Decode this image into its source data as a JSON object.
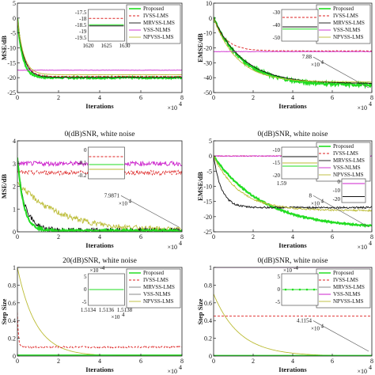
{
  "chart_data": [
    {
      "type": "line",
      "title": "",
      "xlabel": "Iterations",
      "ylabel": "MSE/dB",
      "xlim": [
        0,
        8
      ],
      "ylim": [
        -25,
        5
      ],
      "xticks": [
        "0",
        "2",
        "4",
        "6",
        "8"
      ],
      "yticks": [
        "-25",
        "-20",
        "-15",
        "-10",
        "-5",
        "0",
        "5"
      ],
      "x_multiplier": "×10^4",
      "legend": [
        "Proposed",
        "IVSS-LMS",
        "MRVSS-LMS",
        "VSS-NLMS",
        "NPVSS-LMS"
      ],
      "legend_position": "top-right",
      "series": [
        {
          "name": "Proposed",
          "color": "#22dd22",
          "start": 0,
          "end": -20,
          "decay": 0.25,
          "noise": 0.3,
          "width": 2.2
        },
        {
          "name": "IVSS-LMS",
          "color": "#dd2222",
          "dash": "3,2",
          "start": 0,
          "end": -19.6,
          "decay": 0.3,
          "noise": 0.08,
          "width": 0.9
        },
        {
          "name": "MRVSS-LMS",
          "color": "#111111",
          "start": 0,
          "end": -19.9,
          "decay": 0.3,
          "noise": 0.08,
          "width": 0.9
        },
        {
          "name": "VSS-NLMS",
          "color": "#cc22cc",
          "start": -17.5,
          "end": -17.5,
          "decay": 0.1,
          "noise": 0.05,
          "width": 0.9
        },
        {
          "name": "NPVSS-LMS",
          "color": "#bbbb33",
          "start": 0,
          "end": -19.0,
          "decay": 0.3,
          "noise": 0.05,
          "width": 0.9
        }
      ],
      "inset": {
        "yticks": [
          "-17.5",
          "-18",
          "-18.5",
          "-19",
          "-19.5"
        ],
        "xticks": [
          "1620",
          "1625",
          "1630"
        ],
        "lines": [
          {
            "color": "#dd2222",
            "dash": "3,2",
            "pos": 0.28
          },
          {
            "color": "#22dd22",
            "pos": 0.48
          },
          {
            "color": "#111111",
            "pos": 0.52
          }
        ]
      }
    },
    {
      "type": "line",
      "title": "",
      "xlabel": "Iterations",
      "ylabel": "EMSE/dB",
      "xlim": [
        0,
        8
      ],
      "ylim": [
        -50,
        10
      ],
      "xticks": [
        "0",
        "2",
        "4",
        "6",
        "8"
      ],
      "yticks": [
        "-50",
        "-40",
        "-30",
        "-20",
        "-10",
        "0",
        "10"
      ],
      "x_multiplier": "×10^4",
      "legend": [
        "Proposed",
        "IVSS-LMS",
        "MRVSS-LMS",
        "VSS-NLMS",
        "NPVSS-LMS"
      ],
      "legend_position": "top-right",
      "annotation": "7.88",
      "annotation_multiplier": "×10^4",
      "series": [
        {
          "name": "Proposed",
          "color": "#22dd22",
          "start": 0,
          "end": -45,
          "decay": 1.5,
          "noise": 1.0,
          "width": 2.2
        },
        {
          "name": "IVSS-LMS",
          "color": "#dd2222",
          "dash": "3,2",
          "start": 0,
          "end": -22,
          "decay": 0.6,
          "noise": 0.15,
          "width": 0.9
        },
        {
          "name": "MRVSS-LMS",
          "color": "#111111",
          "start": 0,
          "end": -44,
          "decay": 1.5,
          "noise": 0.2,
          "width": 0.9
        },
        {
          "name": "VSS-NLMS",
          "color": "#cc22cc",
          "start": -22.5,
          "end": -22.5,
          "decay": 0.1,
          "noise": 0.1,
          "width": 0.9
        },
        {
          "name": "NPVSS-LMS",
          "color": "#bbbb33",
          "start": 0,
          "end": -43,
          "decay": 1.2,
          "noise": 0.2,
          "width": 0.9
        }
      ],
      "inset": {
        "yticks": [
          "-30",
          "-40",
          "-50"
        ],
        "xticks": [],
        "lines": [
          {
            "color": "#dd2222",
            "dash": "3,2",
            "pos": 0.25
          },
          {
            "color": "#111111",
            "pos": 0.55
          },
          {
            "color": "#22dd22",
            "pos": 0.62
          }
        ]
      }
    },
    {
      "type": "line",
      "title": "0(dB)SNR, white noise",
      "xlabel": "Iterations",
      "ylabel": "MSE/dB",
      "xlim": [
        0,
        8
      ],
      "ylim": [
        0,
        4
      ],
      "xticks": [
        "0",
        "2",
        "4",
        "6",
        "8"
      ],
      "yticks": [
        "0",
        "1",
        "2",
        "3",
        "4"
      ],
      "x_multiplier": "×10^4",
      "legend": [],
      "annotation": "7.9871",
      "annotation_multiplier": "×10^4",
      "series": [
        {
          "name": "VSS-NLMS",
          "color": "#cc22cc",
          "start": 3.0,
          "end": 3.0,
          "decay": 0.1,
          "noise": 0.1,
          "width": 0.9
        },
        {
          "name": "IVSS-LMS",
          "color": "#dd2222",
          "dash": "3,2",
          "start": 2.6,
          "end": 2.6,
          "decay": 0.1,
          "noise": 0.1,
          "width": 0.9
        },
        {
          "name": "NPVSS-LMS",
          "color": "#bbbb33",
          "start": 2.2,
          "end": 0.05,
          "decay": 2.0,
          "noise": 0.12,
          "width": 0.9
        },
        {
          "name": "MRVSS-LMS",
          "color": "#111111",
          "start": 3.0,
          "end": 0.05,
          "decay": 0.4,
          "noise": 0.12,
          "width": 0.9
        },
        {
          "name": "Proposed",
          "color": "#22dd22",
          "start": 3.3,
          "end": 0.05,
          "decay": 0.3,
          "noise": 0.05,
          "width": 2.0
        }
      ],
      "inset": {
        "yticks": [
          "0",
          "-0.1",
          "-0.2"
        ],
        "xticks": [],
        "lines": [
          {
            "color": "#dd2222",
            "dash": "3,2",
            "pos": 0.3
          },
          {
            "color": "#22dd22",
            "pos": 0.55
          },
          {
            "color": "#bbbb33",
            "pos": 0.7
          }
        ]
      }
    },
    {
      "type": "line",
      "title": "0(dB)SNR, white noise",
      "xlabel": "Iterations",
      "ylabel": "EMSE/dB",
      "xlim": [
        0,
        8
      ],
      "ylim": [
        -25,
        5
      ],
      "xticks": [
        "0",
        "2",
        "4",
        "6",
        "8"
      ],
      "yticks": [
        "-25",
        "-20",
        "-15",
        "-10",
        "-5",
        "0",
        "5"
      ],
      "x_multiplier": "×10^4",
      "legend": [
        "Proposed",
        "IVSS-LMS",
        "MRVSS-LMS",
        "VSS-NLMS",
        "NPVSS-LMS"
      ],
      "legend_position": "top-right",
      "annotation": "8",
      "annotation_multiplier": "×10^4",
      "series": [
        {
          "name": "Proposed",
          "color": "#22dd22",
          "start": 0,
          "end": -24,
          "decay": 2.5,
          "noise": 0.25,
          "width": 2.2
        },
        {
          "name": "IVSS-LMS",
          "color": "#dd2222",
          "dash": "3,2",
          "start": 0,
          "end": 0,
          "decay": 0.1,
          "noise": 0.1,
          "width": 0.9
        },
        {
          "name": "MRVSS-LMS",
          "color": "#111111",
          "start": 0,
          "end": -17,
          "decay": 0.4,
          "noise": 0.3,
          "width": 0.9
        },
        {
          "name": "VSS-NLMS",
          "color": "#cc22cc",
          "start": 0,
          "end": 0,
          "decay": 0.1,
          "noise": 0.1,
          "width": 0.9
        },
        {
          "name": "NPVSS-LMS",
          "color": "#bbbb33",
          "start": 0,
          "end": -18,
          "decay": 1.3,
          "noise": 0.3,
          "width": 0.9
        }
      ],
      "inset": {
        "yticks": [
          "-10",
          "-15",
          "-20"
        ],
        "xticks": [
          "1.59"
        ],
        "lines": [
          {
            "color": "#111111",
            "pos": 0.3
          },
          {
            "color": "#bbbb33",
            "pos": 0.5
          },
          {
            "color": "#22dd22",
            "pos": 0.6
          }
        ]
      },
      "inset2": {
        "yticks": [
          "0",
          "-10",
          "-20"
        ],
        "lines": [
          {
            "color": "#dd2222",
            "dash": "3,2",
            "pos": 0.2
          },
          {
            "color": "#cc22cc",
            "pos": 0.2
          },
          {
            "color": "#111111",
            "pos": 0.75
          }
        ]
      }
    },
    {
      "type": "line",
      "title": "20(dB)SNR, white noise",
      "xlabel": "Iterations",
      "ylabel": "Step Size",
      "xlim": [
        0,
        8
      ],
      "ylim": [
        0,
        1
      ],
      "xticks": [
        "0",
        "2",
        "4",
        "6",
        "8"
      ],
      "yticks": [
        "0",
        "0.2",
        "0.4",
        "0.6",
        "0.8",
        "1"
      ],
      "x_multiplier": "×10^4",
      "legend": [
        "Proposed",
        "IVSS-LMS",
        "MRVSS-LMS",
        "VSS-NLMS",
        "NPVSS-LMS"
      ],
      "legend_position": "top-right",
      "series": [
        {
          "name": "NPVSS-LMS",
          "color": "#bbbb33",
          "start": 1.0,
          "end": 0.0,
          "decay": 0.9,
          "noise": 0,
          "width": 0.9
        },
        {
          "name": "IVSS-LMS",
          "color": "#dd2222",
          "dash": "3,2",
          "start": 0.5,
          "end": 0.1,
          "decay": 0.05,
          "noise": 0.01,
          "width": 0.9
        },
        {
          "name": "Proposed",
          "color": "#22dd22",
          "start": 0.01,
          "end": 0.01,
          "decay": 0.1,
          "noise": 0,
          "width": 1.5
        }
      ],
      "inset": {
        "yticks": [
          "5",
          "0",
          "-5"
        ],
        "xticks": [
          "1.5134",
          "1.5136",
          "1.5138"
        ],
        "multiplier": "×10^-4",
        "xmultiplier": "×10^4",
        "lines": [
          {
            "color": "#22dd22",
            "pos": 0.5
          }
        ]
      }
    },
    {
      "type": "line",
      "title": "0(dB)SNR, white noise",
      "xlabel": "Iterations",
      "ylabel": "Step Size",
      "xlim": [
        0,
        8
      ],
      "ylim": [
        0,
        1
      ],
      "xticks": [
        "0",
        "2",
        "4",
        "6",
        "8"
      ],
      "yticks": [
        "0",
        "0.2",
        "0.4",
        "0.6",
        "0.8",
        "1"
      ],
      "x_multiplier": "×10^4",
      "legend": [
        "Proposed",
        "IVSS-LMS",
        "MRVSS-LMS",
        "VSS-NLMS",
        "NPVSS-LMS"
      ],
      "legend_position": "top-right",
      "annotation": "4.1154",
      "annotation_multiplier": "×10^4",
      "series": [
        {
          "name": "VSS-NLMS",
          "color": "#cc22cc",
          "start": 1.0,
          "end": 1.0,
          "decay": 0.1,
          "noise": 0,
          "width": 1.0
        },
        {
          "name": "IVSS-LMS",
          "color": "#dd2222",
          "dash": "3,2",
          "start": 0.45,
          "end": 0.45,
          "decay": 0.1,
          "noise": 0,
          "width": 0.9
        },
        {
          "name": "NPVSS-LMS",
          "color": "#bbbb33",
          "start": 0.7,
          "end": 0.0,
          "decay": 1.3,
          "noise": 0,
          "width": 0.9
        },
        {
          "name": "Proposed",
          "color": "#22dd22",
          "start": 0.005,
          "end": 0.005,
          "decay": 0.1,
          "noise": 0,
          "width": 1.5
        }
      ],
      "inset": {
        "yticks": [
          "5",
          "0",
          "-5"
        ],
        "xticks": [],
        "multiplier": "×10^-4",
        "lines": [
          {
            "color": "#22dd22",
            "pos": 0.5,
            "marker": true
          }
        ]
      }
    }
  ]
}
